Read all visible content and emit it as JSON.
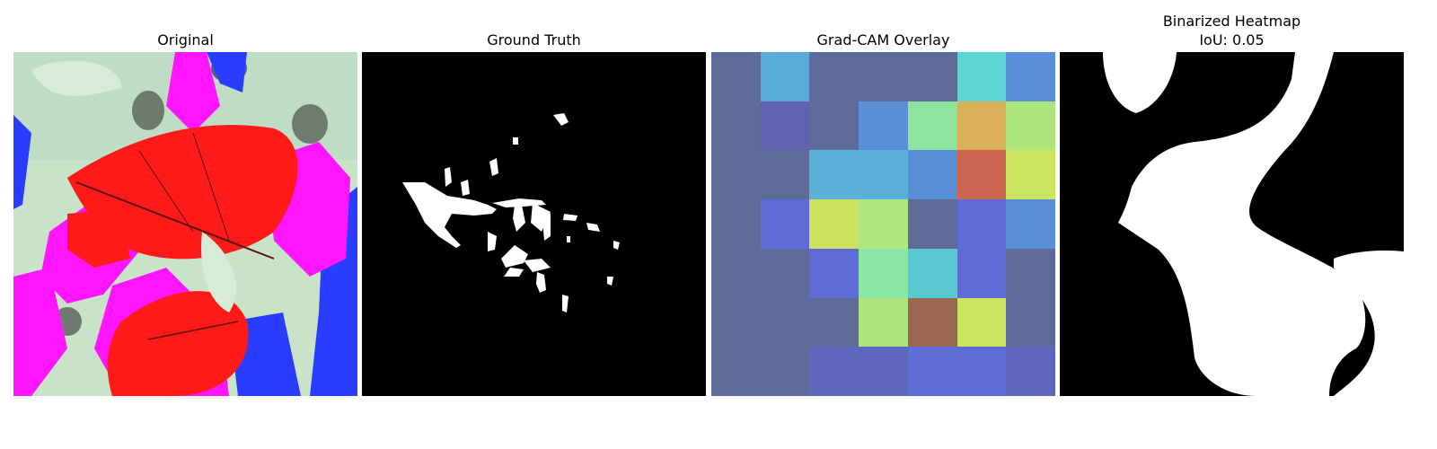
{
  "panels": [
    {
      "title": "Original"
    },
    {
      "title": "Ground Truth"
    },
    {
      "title": "Grad-CAM Overlay"
    },
    {
      "title": "Binarized Heatmap",
      "subtitle": "IoU: 0.05"
    }
  ],
  "colors": {
    "background": "#ffffff",
    "mask_foreground": "#ffffff",
    "mask_background": "#000000",
    "leaf_red": "#ff1a1a",
    "magenta": "#ff00ff",
    "blue": "#1f3cff",
    "pale_green": "#cfe8cf"
  },
  "gradcam_grid": [
    [
      "#5e6a98",
      "#5aaad6",
      "#5e6a98",
      "#5e6a98",
      "#5e6a98",
      "#5fd4d4",
      "#5b8ed8"
    ],
    [
      "#5e6a98",
      "#5f62b0",
      "#5e6a98",
      "#5b8ed8",
      "#8ee49c",
      "#dbb05a",
      "#ace57c"
    ],
    [
      "#5e6a98",
      "#5e6a98",
      "#5ab0d6",
      "#5ab0d6",
      "#5b8ed8",
      "#cc6650",
      "#cbe55e"
    ],
    [
      "#5e6a98",
      "#5f6cd8",
      "#cde35e",
      "#aee680",
      "#5e6a98",
      "#5f6cd8",
      "#5b8ed8"
    ],
    [
      "#5e6a98",
      "#5e6a98",
      "#5f6cd8",
      "#8ae6a4",
      "#5ac8d0",
      "#5f6cd8",
      "#5e6a98"
    ],
    [
      "#5e6a98",
      "#5e6a98",
      "#5e6a98",
      "#ace57c",
      "#9a6850",
      "#cbe55e",
      "#5e6a98"
    ],
    [
      "#5e6a98",
      "#5e6a98",
      "#5f66c0",
      "#5f66c0",
      "#5f6cd8",
      "#5f6cd8",
      "#5f66c0"
    ]
  ]
}
